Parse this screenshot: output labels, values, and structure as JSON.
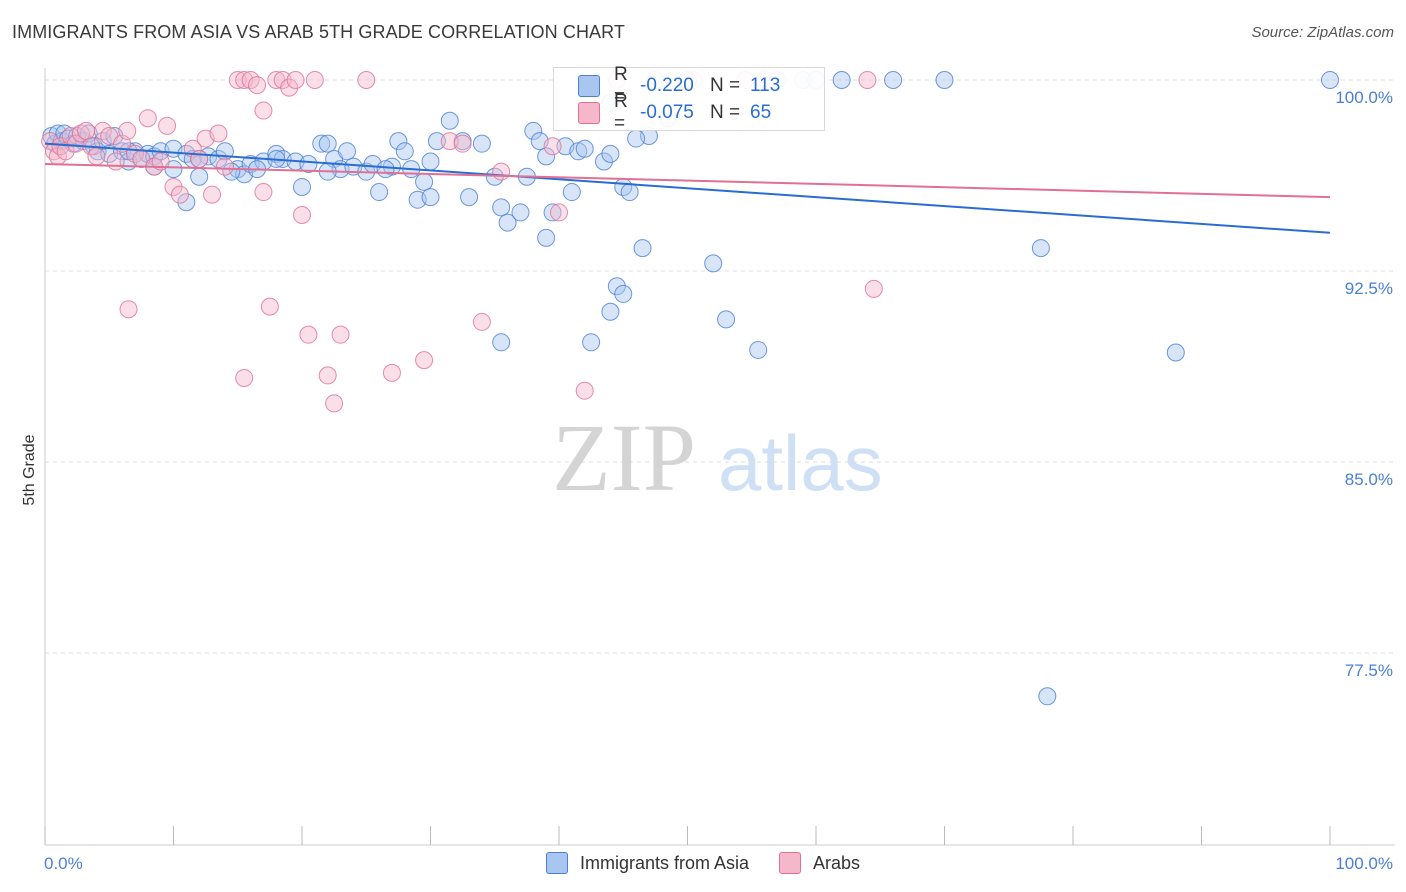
{
  "title": "IMMIGRANTS FROM ASIA VS ARAB 5TH GRADE CORRELATION CHART",
  "source": "Source: ZipAtlas.com",
  "watermark": {
    "zip": "ZIP",
    "atlas": "atlas"
  },
  "legend": {
    "r_label": "R =",
    "n_label": "N =",
    "series": [
      {
        "r": "-0.220",
        "n": "113",
        "color": "#a8c6f0",
        "edge": "#4a7fd4"
      },
      {
        "r": "-0.075",
        "n": "65",
        "color": "#f5b8cb",
        "edge": "#e07094"
      }
    ]
  },
  "bottom_legend": [
    "Immigrants from Asia",
    "Arabs"
  ],
  "chart_data": {
    "type": "scatter",
    "title": "IMMIGRANTS FROM ASIA VS ARAB 5TH GRADE CORRELATION CHART",
    "xlabel": "",
    "ylabel": "5th Grade",
    "xlim": [
      0,
      100
    ],
    "ylim": [
      70,
      100.7
    ],
    "y_ticks": [
      {
        "v": 100,
        "label": "100.0%"
      },
      {
        "v": 92.5,
        "label": "92.5%"
      },
      {
        "v": 85,
        "label": "85.0%"
      },
      {
        "v": 77.5,
        "label": "77.5%"
      }
    ],
    "x_tick_labels": {
      "left": "0.0%",
      "right": "100.0%"
    },
    "legend_position": "top-center",
    "series": [
      {
        "name": "Immigrants from Asia",
        "color": "#a8c6f0",
        "edge": "#4a7fd4",
        "trend": {
          "x0": 0,
          "y0": 97.5,
          "x1": 100,
          "y1": 94.0,
          "color": "#2a6dd0"
        },
        "points": [
          [
            0.5,
            97.8
          ],
          [
            0.8,
            97.5
          ],
          [
            1.0,
            97.9
          ],
          [
            1.3,
            97.6
          ],
          [
            1.5,
            97.9
          ],
          [
            1.8,
            97.7
          ],
          [
            2.2,
            97.5
          ],
          [
            2.5,
            97.8
          ],
          [
            3.0,
            97.6
          ],
          [
            3.4,
            97.9
          ],
          [
            3.8,
            97.4
          ],
          [
            4.1,
            97.2
          ],
          [
            4.5,
            97.6
          ],
          [
            5.0,
            97.1
          ],
          [
            5.4,
            97.8
          ],
          [
            6.0,
            97.2
          ],
          [
            6.5,
            96.8
          ],
          [
            7.0,
            97.2
          ],
          [
            7.5,
            96.9
          ],
          [
            8.0,
            97.1
          ],
          [
            8.5,
            97.0
          ],
          [
            9.0,
            97.2
          ],
          [
            10.0,
            97.3
          ],
          [
            11.0,
            97.1
          ],
          [
            11.5,
            96.9
          ],
          [
            12.0,
            96.2
          ],
          [
            12.7,
            97.0
          ],
          [
            13.5,
            96.9
          ],
          [
            14.0,
            97.2
          ],
          [
            15.0,
            96.5
          ],
          [
            15.5,
            96.3
          ],
          [
            16.0,
            96.7
          ],
          [
            17.0,
            96.8
          ],
          [
            18.0,
            97.1
          ],
          [
            18.5,
            96.9
          ],
          [
            19.5,
            96.8
          ],
          [
            20.0,
            95.8
          ],
          [
            20.5,
            96.7
          ],
          [
            21.5,
            97.5
          ],
          [
            22.0,
            97.5
          ],
          [
            22.5,
            96.9
          ],
          [
            23.0,
            96.5
          ],
          [
            23.5,
            97.2
          ],
          [
            24.0,
            96.6
          ],
          [
            25.0,
            96.4
          ],
          [
            25.5,
            96.7
          ],
          [
            26.0,
            95.6
          ],
          [
            27.0,
            96.6
          ],
          [
            27.5,
            97.6
          ],
          [
            28.0,
            97.2
          ],
          [
            29.0,
            95.3
          ],
          [
            29.5,
            96.0
          ],
          [
            30.0,
            96.8
          ],
          [
            30.5,
            97.6
          ],
          [
            31.5,
            98.4
          ],
          [
            32.5,
            97.6
          ],
          [
            33.0,
            95.4
          ],
          [
            34.0,
            97.5
          ],
          [
            35.0,
            96.2
          ],
          [
            35.5,
            95.0
          ],
          [
            36.0,
            94.4
          ],
          [
            37.0,
            94.8
          ],
          [
            38.0,
            98.0
          ],
          [
            38.5,
            97.6
          ],
          [
            39.0,
            97.0
          ],
          [
            39.5,
            94.8
          ],
          [
            40.5,
            97.4
          ],
          [
            41.0,
            95.6
          ],
          [
            41.5,
            97.2
          ],
          [
            42.0,
            97.3
          ],
          [
            43.5,
            96.8
          ],
          [
            44.0,
            97.1
          ],
          [
            45.0,
            95.8
          ],
          [
            45.5,
            95.6
          ],
          [
            46.5,
            93.4
          ],
          [
            47.0,
            97.8
          ],
          [
            48.5,
            98.5
          ],
          [
            50.0,
            100.0
          ],
          [
            52.0,
            92.8
          ],
          [
            53.0,
            90.6
          ],
          [
            55.5,
            89.4
          ],
          [
            57.0,
            100.0
          ],
          [
            59.0,
            100.0
          ],
          [
            60.0,
            100.0
          ],
          [
            62.0,
            100.0
          ],
          [
            66.0,
            100.0
          ],
          [
            70.0,
            100.0
          ],
          [
            77.5,
            93.4
          ],
          [
            78.0,
            75.8
          ],
          [
            88.0,
            89.3
          ],
          [
            100.0,
            100.0
          ],
          [
            35.5,
            89.7
          ],
          [
            42.5,
            89.7
          ],
          [
            44.0,
            90.9
          ],
          [
            44.5,
            91.9
          ],
          [
            45.0,
            91.6
          ],
          [
            47.5,
            100.0
          ],
          [
            44.0,
            99.1
          ],
          [
            22.0,
            96.4
          ],
          [
            10.0,
            96.5
          ],
          [
            12.0,
            96.9
          ],
          [
            14.5,
            96.4
          ],
          [
            16.5,
            96.5
          ],
          [
            18.0,
            96.9
          ],
          [
            26.5,
            96.5
          ],
          [
            28.5,
            96.5
          ],
          [
            30.0,
            95.4
          ],
          [
            46.0,
            97.7
          ],
          [
            37.5,
            96.2
          ],
          [
            39.0,
            93.8
          ],
          [
            11.0,
            95.2
          ],
          [
            6.5,
            97.2
          ],
          [
            8.5,
            96.6
          ]
        ]
      },
      {
        "name": "Arabs",
        "color": "#f5b8cb",
        "edge": "#e07094",
        "trend": {
          "x0": 0,
          "y0": 96.7,
          "x1": 100,
          "y1": 95.4,
          "color": "#e07094"
        },
        "points": [
          [
            0.4,
            97.6
          ],
          [
            0.7,
            97.2
          ],
          [
            1.0,
            97.0
          ],
          [
            1.2,
            97.4
          ],
          [
            1.6,
            97.2
          ],
          [
            2.0,
            97.8
          ],
          [
            2.4,
            97.5
          ],
          [
            2.8,
            97.9
          ],
          [
            3.2,
            98.0
          ],
          [
            3.6,
            97.4
          ],
          [
            4.0,
            97.0
          ],
          [
            4.5,
            98.0
          ],
          [
            5.0,
            97.8
          ],
          [
            5.5,
            96.8
          ],
          [
            6.0,
            97.5
          ],
          [
            6.4,
            98.0
          ],
          [
            7.0,
            97.1
          ],
          [
            7.5,
            96.9
          ],
          [
            8.0,
            98.5
          ],
          [
            8.5,
            96.6
          ],
          [
            9.0,
            96.8
          ],
          [
            9.5,
            98.2
          ],
          [
            10.0,
            95.8
          ],
          [
            10.5,
            95.5
          ],
          [
            11.5,
            97.3
          ],
          [
            12.0,
            96.9
          ],
          [
            12.5,
            97.7
          ],
          [
            13.0,
            95.5
          ],
          [
            13.5,
            97.9
          ],
          [
            14.0,
            96.6
          ],
          [
            15.0,
            100.0
          ],
          [
            15.5,
            100.0
          ],
          [
            16.0,
            100.0
          ],
          [
            16.5,
            99.8
          ],
          [
            17.0,
            98.8
          ],
          [
            18.0,
            100.0
          ],
          [
            18.5,
            100.0
          ],
          [
            19.0,
            99.7
          ],
          [
            19.5,
            100.0
          ],
          [
            20.0,
            94.7
          ],
          [
            20.5,
            90.0
          ],
          [
            21.0,
            100.0
          ],
          [
            22.0,
            88.4
          ],
          [
            22.5,
            87.3
          ],
          [
            23.0,
            90.0
          ],
          [
            25.0,
            100.0
          ],
          [
            27.0,
            88.5
          ],
          [
            29.5,
            89.0
          ],
          [
            31.5,
            97.6
          ],
          [
            32.5,
            97.5
          ],
          [
            34.0,
            90.5
          ],
          [
            35.5,
            96.4
          ],
          [
            39.5,
            97.4
          ],
          [
            40.0,
            94.8
          ],
          [
            42.0,
            87.8
          ],
          [
            44.5,
            100.0
          ],
          [
            50.5,
            100.0
          ],
          [
            54.5,
            100.0
          ],
          [
            56.0,
            100.0
          ],
          [
            64.0,
            100.0
          ],
          [
            64.5,
            91.8
          ],
          [
            6.5,
            91.0
          ],
          [
            15.5,
            88.3
          ],
          [
            17.5,
            91.1
          ],
          [
            17.0,
            95.6
          ]
        ]
      }
    ]
  }
}
